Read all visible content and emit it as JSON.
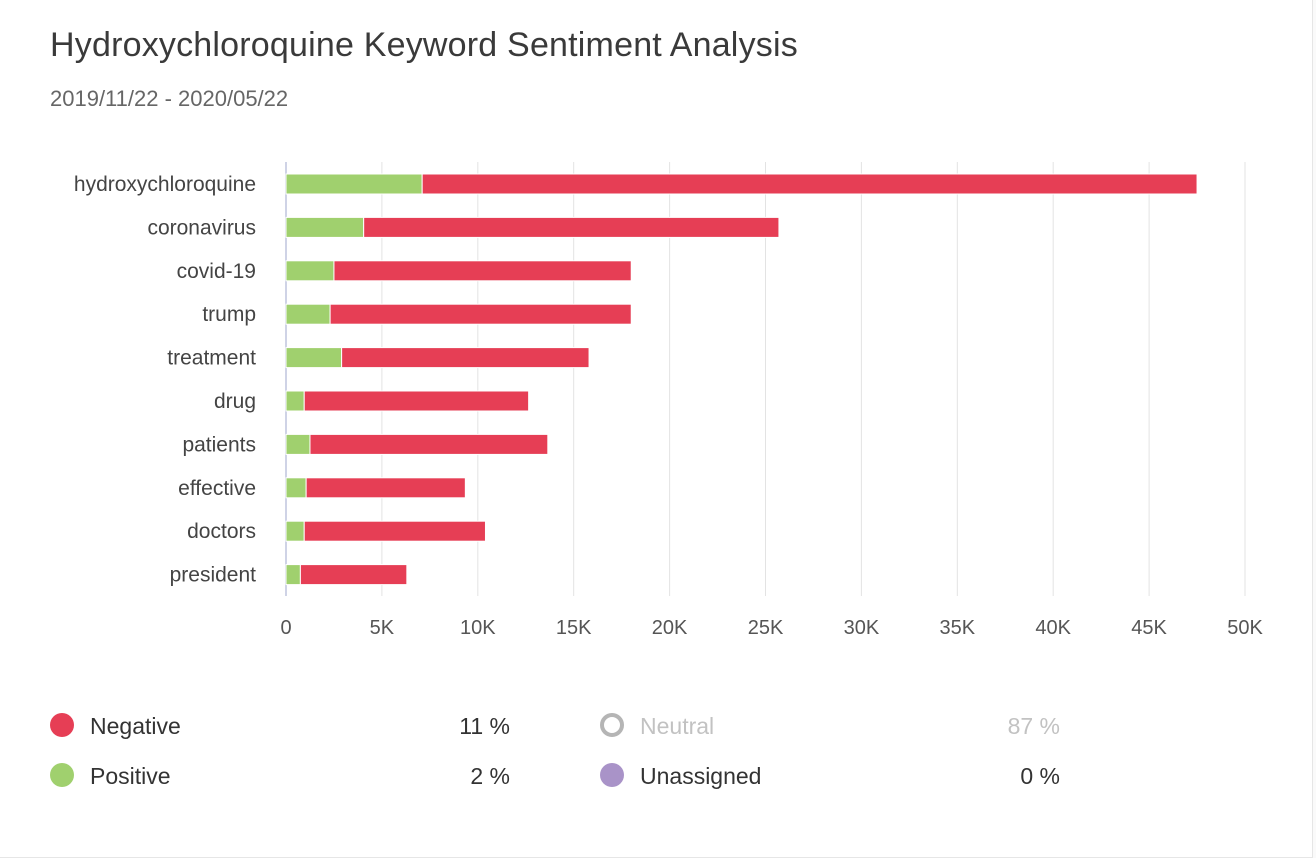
{
  "header": {
    "title": "Hydroxychloroquine Keyword Sentiment Analysis",
    "subtitle": "2019/11/22 - 2020/05/22"
  },
  "colors": {
    "negative": "#e63e55",
    "positive": "#a0d06e",
    "neutral": "#b5b5b5",
    "unassigned": "#a993c8",
    "grid": "#e3e3e3",
    "axis": "#cfd3e6"
  },
  "chart_data": {
    "type": "bar",
    "orientation": "horizontal",
    "stacked": true,
    "categories": [
      "hydroxychloroquine",
      "coronavirus",
      "covid-19",
      "trump",
      "treatment",
      "drug",
      "patients",
      "effective",
      "doctors",
      "president"
    ],
    "series": [
      {
        "name": "Positive",
        "color": "#a0d06e",
        "values": [
          7100,
          4050,
          2500,
          2300,
          2900,
          950,
          1250,
          1050,
          950,
          750
        ]
      },
      {
        "name": "Negative",
        "color": "#e63e55",
        "values": [
          40400,
          21650,
          15500,
          15700,
          12900,
          11700,
          12400,
          8300,
          9450,
          5550
        ]
      }
    ],
    "xlim": [
      0,
      50000
    ],
    "xticks": [
      "0",
      "5K",
      "10K",
      "15K",
      "20K",
      "25K",
      "30K",
      "35K",
      "40K",
      "45K",
      "50K"
    ],
    "xlabel": "",
    "ylabel": "",
    "grid": true
  },
  "legend": {
    "items": [
      {
        "label": "Negative",
        "value": "11 %",
        "color": "#e63e55",
        "muted": false,
        "hollow": false
      },
      {
        "label": "Positive",
        "value": "2 %",
        "color": "#a0d06e",
        "muted": false,
        "hollow": false
      },
      {
        "label": "Neutral",
        "value": "87 %",
        "color": "#b5b5b5",
        "muted": true,
        "hollow": true
      },
      {
        "label": "Unassigned",
        "value": "0 %",
        "color": "#a993c8",
        "muted": false,
        "hollow": false
      }
    ]
  }
}
